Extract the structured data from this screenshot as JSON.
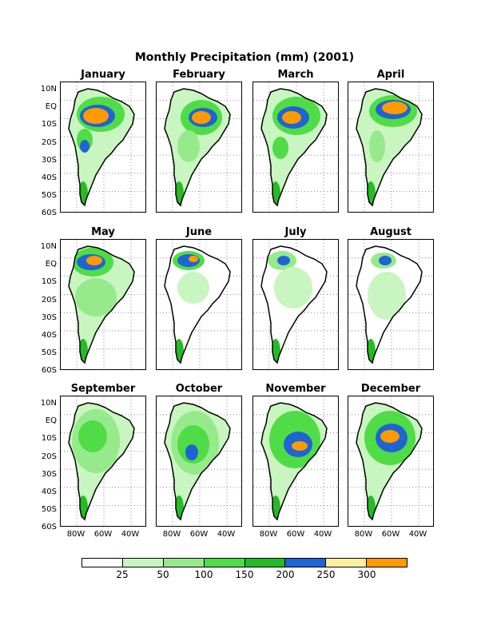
{
  "title": "Monthly Precipitation (mm) (2001)",
  "months": [
    "January",
    "February",
    "March",
    "April",
    "May",
    "June",
    "July",
    "August",
    "September",
    "October",
    "November",
    "December"
  ],
  "y_tick_labels": [
    "10N",
    "EQ",
    "10S",
    "20S",
    "30S",
    "40S",
    "50S",
    "60S"
  ],
  "x_tick_labels": [
    "80W",
    "60W",
    "40W"
  ],
  "legend": {
    "colors": [
      "#ffffff",
      "#c8f5c0",
      "#96ea8c",
      "#50dc46",
      "#26ba26",
      "#1e64d2",
      "#fff0a0",
      "#ff9a00"
    ],
    "labels": [
      "25",
      "50",
      "100",
      "150",
      "200",
      "250",
      "300"
    ]
  }
}
